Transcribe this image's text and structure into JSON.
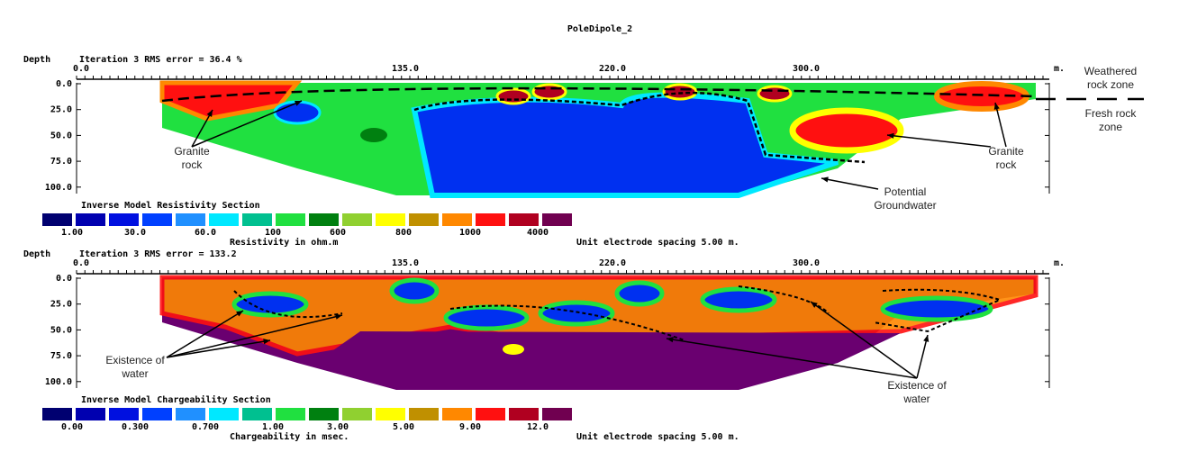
{
  "title": "PoleDipole_2",
  "panels": [
    {
      "depth_label": "Depth",
      "rms": "Iteration 3 RMS error = 36.4 %",
      "x_labels": [
        "0.0",
        "135.0",
        "220.0",
        "300.0"
      ],
      "x_unit": "m.",
      "depth_ticks": [
        "0.0",
        "25.0",
        "50.0",
        "75.0",
        "100.0"
      ],
      "section_title": "Inverse Model Resistivity Section",
      "scale_labels": [
        "1.00",
        "30.0",
        "60.0",
        "100",
        "600",
        "800",
        "1000",
        "4000"
      ],
      "scale_unit": "Resistivity in ohm.m",
      "spacing": "Unit electrode spacing 5.00 m.",
      "annotations": [
        {
          "lines": [
            "Granite",
            "rock"
          ]
        },
        {
          "lines": [
            "Granite",
            "rock"
          ]
        },
        {
          "lines": [
            "Potential",
            "Groundwater"
          ]
        },
        {
          "lines": [
            "Weathered",
            "rock zone"
          ]
        },
        {
          "lines": [
            "Fresh rock",
            "zone"
          ]
        }
      ]
    },
    {
      "depth_label": "Depth",
      "rms": "Iteration 3 RMS error = 133.2",
      "x_labels": [
        "0.0",
        "135.0",
        "220.0",
        "300.0"
      ],
      "x_unit": "m.",
      "depth_ticks": [
        "0.0",
        "25.0",
        "50.0",
        "75.0",
        "100.0"
      ],
      "section_title": "Inverse Model Chargeability Section",
      "scale_labels": [
        "0.00",
        "0.300",
        "0.700",
        "1.00",
        "3.00",
        "5.00",
        "9.00",
        "12.0"
      ],
      "scale_unit": "Chargeability in msec.",
      "spacing": "Unit electrode spacing 5.00 m.",
      "annotations": [
        {
          "lines": [
            "Existence of",
            "water"
          ]
        },
        {
          "lines": [
            "Existence of",
            "water"
          ]
        }
      ]
    }
  ]
}
